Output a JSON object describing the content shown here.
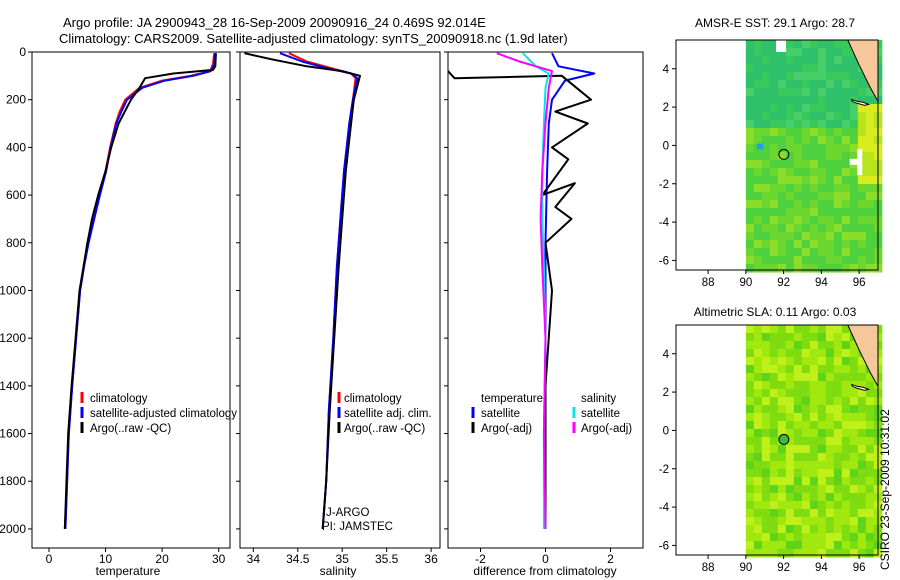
{
  "header": {
    "line1": "Argo profile: JA 2900943_28 16-Sep-2009 20090916_24 0.469S 92.014E",
    "line2": "Climatology: CARS2009. Satellite-adjusted climatology: synTS_20090918.nc (1.9d later)"
  },
  "side_label": "CSIRO 23-Sep-2009 10:31:02",
  "colors": {
    "climatology": "#ff0000",
    "satellite": "#0000ff",
    "argo": "#000000",
    "sal_satellite": "#00e5ee",
    "sal_argo": "#ff00ff"
  },
  "chart_data": [
    {
      "type": "line",
      "xlabel": "temperature",
      "ylabel": "",
      "xlim": [
        -3,
        32
      ],
      "ylim": [
        2080,
        0
      ],
      "xticks": [
        0,
        10,
        20,
        30
      ],
      "yticks": [
        0,
        200,
        400,
        600,
        800,
        1000,
        1200,
        1400,
        1600,
        1800,
        2000
      ],
      "legend": [
        "climatology",
        "satellite-adjusted climatology",
        "Argo(..raw -QC)"
      ],
      "series": [
        {
          "name": "climatology",
          "color": "red",
          "x": [
            29.2,
            29.0,
            28.5,
            25,
            20,
            16,
            13.5,
            12.5,
            11.8,
            10.8,
            10.0,
            8.8,
            7.8,
            6.9,
            6.2,
            5.5,
            4.8,
            4.1,
            3.5,
            2.9
          ],
          "y": [
            5,
            50,
            80,
            100,
            120,
            150,
            200,
            250,
            300,
            400,
            500,
            600,
            700,
            800,
            900,
            1000,
            1200,
            1400,
            1600,
            2000
          ]
        },
        {
          "name": "satellite-adjusted climatology",
          "color": "blue",
          "x": [
            29.4,
            29.2,
            28.6,
            25.5,
            20.5,
            16.5,
            13.8,
            12.8,
            11.9,
            10.9,
            10.1,
            9.0,
            8.0,
            7.0,
            6.2,
            5.5,
            4.8,
            4.1,
            3.5,
            2.9
          ],
          "y": [
            5,
            50,
            80,
            100,
            120,
            150,
            200,
            250,
            300,
            400,
            500,
            600,
            700,
            800,
            900,
            1000,
            1200,
            1400,
            1600,
            2000
          ]
        },
        {
          "name": "Argo(..raw -QC)",
          "color": "black",
          "x": [
            29.5,
            29.4,
            29.0,
            22,
            17,
            16,
            14.5,
            13.4,
            12.3,
            11.0,
            10.0,
            8.7,
            7.6,
            6.8,
            6.1,
            5.4,
            4.7,
            4.0,
            3.4,
            2.8
          ],
          "y": [
            5,
            60,
            75,
            90,
            110,
            150,
            200,
            250,
            300,
            400,
            500,
            600,
            700,
            800,
            900,
            1000,
            1200,
            1400,
            1600,
            2000
          ]
        }
      ]
    },
    {
      "type": "line",
      "xlabel": "salinity",
      "xlim": [
        33.85,
        36.1
      ],
      "ylim": [
        2080,
        0
      ],
      "xticks": [
        34,
        34.5,
        35,
        35.5,
        36
      ],
      "yticks": [
        0,
        200,
        400,
        600,
        800,
        1000,
        1200,
        1400,
        1600,
        1800,
        2000
      ],
      "legend": [
        "climatology",
        "satellite adj. clim.",
        "Argo(..raw -QC)"
      ],
      "annotations": [
        "J-ARGO",
        "PI: JAMSTEC"
      ],
      "series": [
        {
          "name": "climatology",
          "color": "red",
          "x": [
            34.4,
            34.6,
            34.9,
            35.1,
            35.15,
            35.12,
            35.08,
            35.05,
            35.02,
            34.98,
            34.94,
            34.9,
            34.85,
            34.82,
            34.78
          ],
          "y": [
            5,
            40,
            70,
            90,
            110,
            200,
            300,
            400,
            500,
            700,
            900,
            1200,
            1500,
            1800,
            2000
          ]
        },
        {
          "name": "satellite adj. clim.",
          "color": "blue",
          "x": [
            34.3,
            34.55,
            34.85,
            35.1,
            35.17,
            35.12,
            35.08,
            35.05,
            35.02,
            34.98,
            34.94,
            34.9,
            34.85,
            34.82,
            34.78
          ],
          "y": [
            5,
            40,
            70,
            90,
            110,
            200,
            300,
            400,
            500,
            700,
            900,
            1200,
            1500,
            1800,
            2000
          ]
        },
        {
          "name": "Argo(..raw -QC)",
          "color": "black",
          "x": [
            33.9,
            34.2,
            34.6,
            35.0,
            35.2,
            35.13,
            35.1,
            35.07,
            35.04,
            35.0,
            34.96,
            34.91,
            34.86,
            34.82,
            34.78
          ],
          "y": [
            5,
            30,
            60,
            80,
            100,
            200,
            300,
            400,
            500,
            700,
            900,
            1200,
            1500,
            1800,
            2000
          ]
        }
      ]
    },
    {
      "type": "line",
      "xlabel": "difference from climatology",
      "xlim": [
        -3,
        3
      ],
      "ylim": [
        2080,
        0
      ],
      "xticks": [
        -2,
        0,
        2
      ],
      "yticks": [
        0,
        200,
        400,
        600,
        800,
        1000,
        1200,
        1400,
        1600,
        1800,
        2000
      ],
      "legend": [
        "temperature",
        "satellite",
        "Argo(-adj)",
        "salinity",
        "satellite",
        "Argo(-adj)"
      ],
      "series": [
        {
          "name": "temperature satellite",
          "color": "blue",
          "x": [
            0.2,
            0.4,
            1.5,
            0.6,
            0.2,
            0.1,
            0.05,
            0.0,
            0.0,
            0.0,
            0.0
          ],
          "y": [
            5,
            60,
            90,
            120,
            200,
            300,
            500,
            800,
            1200,
            1600,
            2000
          ]
        },
        {
          "name": "temperature Argo(-adj)",
          "color": "black",
          "x": [
            -3,
            -2.8,
            0.5,
            1.4,
            0.3,
            1.3,
            0.2,
            0.7,
            -0.1,
            0.9,
            0.3,
            0.8,
            0.0,
            0.2,
            0.0,
            0.0
          ],
          "y": [
            80,
            110,
            100,
            200,
            250,
            300,
            400,
            450,
            600,
            550,
            650,
            700,
            800,
            1000,
            1400,
            2000
          ]
        },
        {
          "name": "salinity satellite",
          "color": "cyan",
          "x": [
            -0.7,
            -0.3,
            0.1,
            0.0,
            -0.05,
            -0.1,
            -0.1,
            -0.05,
            0.0,
            -0.05,
            -0.05
          ],
          "y": [
            5,
            60,
            90,
            150,
            300,
            500,
            700,
            900,
            1200,
            1600,
            2000
          ]
        },
        {
          "name": "salinity Argo(-adj)",
          "color": "magenta",
          "x": [
            -1.5,
            -0.8,
            0.2,
            0.1,
            0.0,
            -0.1,
            -0.15,
            -0.1,
            0.0,
            -0.05,
            0.0
          ],
          "y": [
            5,
            40,
            80,
            150,
            300,
            500,
            700,
            900,
            1200,
            1600,
            2000
          ]
        }
      ]
    },
    {
      "type": "heatmap",
      "title": "AMSR-E SST: 29.1 Argo: 28.7",
      "xlim": [
        86.3,
        97
      ],
      "ylim": [
        -6.5,
        5.5
      ],
      "xticks": [
        88,
        90,
        92,
        94,
        96
      ],
      "yticks": [
        4,
        2,
        0,
        -2,
        -4,
        -6
      ],
      "marker": {
        "lon": 92.014,
        "lat": -0.469
      }
    },
    {
      "type": "heatmap",
      "title": "Altimetric SLA: 0.11 Argo: 0.03",
      "xlim": [
        86.3,
        97
      ],
      "ylim": [
        -6.5,
        5.5
      ],
      "xticks": [
        88,
        90,
        92,
        94,
        96
      ],
      "yticks": [
        4,
        2,
        0,
        -2,
        -4,
        -6
      ],
      "marker": {
        "lon": 92.014,
        "lat": -0.469
      }
    }
  ]
}
